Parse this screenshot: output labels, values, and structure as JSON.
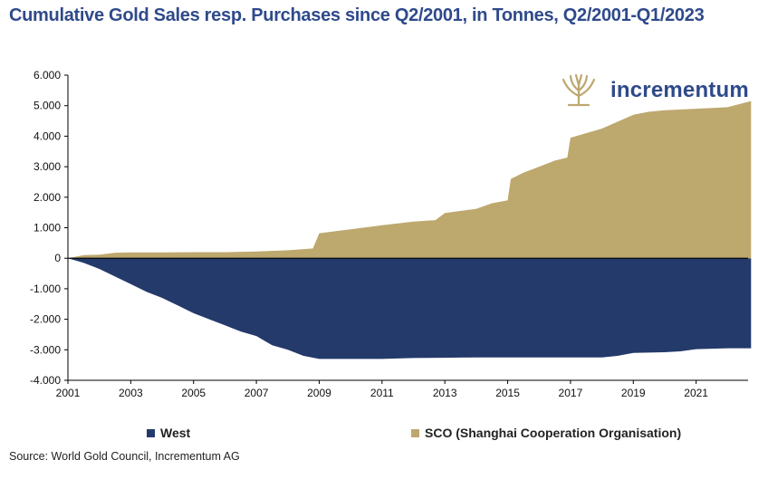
{
  "title": "Cumulative Gold Sales resp. Purchases since Q2/2001, in Tonnes, Q2/2001-Q1/2023",
  "source": "Source: World Gold Council, Incrementum AG",
  "brand": {
    "name": "incrementum",
    "logo_icon": "tree-logo-icon"
  },
  "colors": {
    "west": "#243a6b",
    "sco": "#bda86e",
    "title": "#2f4a8a",
    "axis": "#000000"
  },
  "chart_data": {
    "type": "area",
    "title": "Cumulative Gold Sales resp. Purchases since Q2/2001, in Tonnes, Q2/2001-Q1/2023",
    "xlabel": "",
    "ylabel": "",
    "xlim": [
      2001,
      2023
    ],
    "ylim": [
      -4000,
      6000
    ],
    "y_ticks": [
      -4000,
      -3000,
      -2000,
      -1000,
      0,
      1000,
      2000,
      3000,
      4000,
      5000,
      6000
    ],
    "y_tick_labels": [
      "-4.000",
      "-3.000",
      "-2.000",
      "-1.000",
      "0",
      "1.000",
      "2.000",
      "3.000",
      "4.000",
      "5.000",
      "6.000"
    ],
    "x_ticks": [
      2001,
      2003,
      2005,
      2007,
      2009,
      2011,
      2013,
      2015,
      2017,
      2019,
      2021
    ],
    "x_tick_labels": [
      "2001",
      "2003",
      "2005",
      "2007",
      "2009",
      "2011",
      "2013",
      "2015",
      "2017",
      "2019",
      "2021"
    ],
    "grid": false,
    "legend_position": "bottom",
    "series": [
      {
        "name": "West",
        "color": "#243a6b",
        "points": [
          [
            2001.0,
            0
          ],
          [
            2001.5,
            -150
          ],
          [
            2002.0,
            -350
          ],
          [
            2002.5,
            -600
          ],
          [
            2003.0,
            -850
          ],
          [
            2003.5,
            -1100
          ],
          [
            2004.0,
            -1300
          ],
          [
            2004.5,
            -1550
          ],
          [
            2005.0,
            -1800
          ],
          [
            2005.5,
            -2000
          ],
          [
            2006.0,
            -2200
          ],
          [
            2006.5,
            -2400
          ],
          [
            2007.0,
            -2550
          ],
          [
            2007.5,
            -2850
          ],
          [
            2008.0,
            -3000
          ],
          [
            2008.5,
            -3200
          ],
          [
            2009.0,
            -3300
          ],
          [
            2010.0,
            -3300
          ],
          [
            2011.0,
            -3300
          ],
          [
            2012.0,
            -3270
          ],
          [
            2013.0,
            -3260
          ],
          [
            2014.0,
            -3250
          ],
          [
            2015.0,
            -3250
          ],
          [
            2016.0,
            -3250
          ],
          [
            2017.0,
            -3250
          ],
          [
            2018.0,
            -3250
          ],
          [
            2018.5,
            -3200
          ],
          [
            2019.0,
            -3100
          ],
          [
            2020.0,
            -3080
          ],
          [
            2020.5,
            -3050
          ],
          [
            2021.0,
            -2980
          ],
          [
            2022.0,
            -2950
          ],
          [
            2022.75,
            -2950
          ]
        ]
      },
      {
        "name": "SCO (Shanghai Cooperation Organisation)",
        "color": "#bda86e",
        "points": [
          [
            2001.0,
            0
          ],
          [
            2001.5,
            100
          ],
          [
            2002.0,
            120
          ],
          [
            2002.5,
            180
          ],
          [
            2003.0,
            190
          ],
          [
            2004.0,
            190
          ],
          [
            2005.0,
            200
          ],
          [
            2006.0,
            200
          ],
          [
            2007.0,
            220
          ],
          [
            2008.0,
            260
          ],
          [
            2008.8,
            320
          ],
          [
            2009.0,
            820
          ],
          [
            2010.0,
            950
          ],
          [
            2011.0,
            1080
          ],
          [
            2012.0,
            1200
          ],
          [
            2012.7,
            1250
          ],
          [
            2013.0,
            1480
          ],
          [
            2014.0,
            1620
          ],
          [
            2014.5,
            1800
          ],
          [
            2015.0,
            1900
          ],
          [
            2015.1,
            2600
          ],
          [
            2015.5,
            2800
          ],
          [
            2016.0,
            3000
          ],
          [
            2016.5,
            3200
          ],
          [
            2016.9,
            3300
          ],
          [
            2017.0,
            3950
          ],
          [
            2018.0,
            4250
          ],
          [
            2019.0,
            4700
          ],
          [
            2019.5,
            4800
          ],
          [
            2020.0,
            4850
          ],
          [
            2021.0,
            4900
          ],
          [
            2022.0,
            4950
          ],
          [
            2022.75,
            5150
          ]
        ]
      }
    ]
  }
}
